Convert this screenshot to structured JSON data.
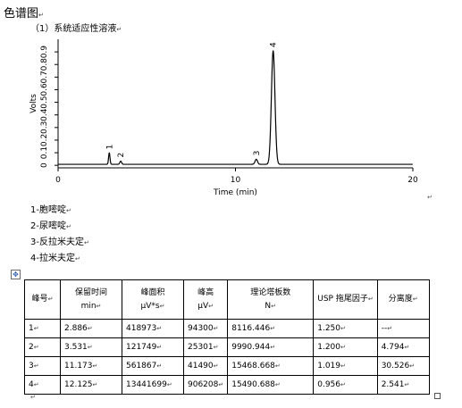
{
  "header": {
    "title": "色谱图",
    "subtitle": "（1）系统适应性溶液"
  },
  "chart_data": {
    "type": "line",
    "xlabel": "Time (min)",
    "ylabel": "Volts",
    "xlim": [
      0,
      20
    ],
    "ylim": [
      -0.02,
      1.0
    ],
    "xticks": [
      0,
      10,
      20
    ],
    "yticks": [
      0.0,
      0.1,
      0.2,
      0.3,
      0.4,
      0.5,
      0.6,
      0.7,
      0.8,
      0.9
    ],
    "baseline": 0.008,
    "peaks": [
      {
        "label": "1",
        "rt": 2.886,
        "height": 0.09,
        "width": 0.04
      },
      {
        "label": "2",
        "rt": 3.531,
        "height": 0.025,
        "width": 0.05
      },
      {
        "label": "3",
        "rt": 11.173,
        "height": 0.04,
        "width": 0.07
      },
      {
        "label": "4",
        "rt": 12.125,
        "height": 0.9,
        "width": 0.1
      }
    ]
  },
  "legend": {
    "items": [
      "1-胞嘧啶",
      "2-尿嘧啶",
      "3-反拉米夫定",
      "4-拉米夫定"
    ]
  },
  "table": {
    "headers": [
      [
        "峰号"
      ],
      [
        "保留时间",
        "min"
      ],
      [
        "峰面积",
        "μV*s"
      ],
      [
        "峰高",
        "μV"
      ],
      [
        "理论塔板数",
        "N"
      ],
      [
        "USP 拖尾因子"
      ],
      [
        "分离度"
      ]
    ],
    "rows": [
      [
        "1",
        "2.886",
        "418973",
        "94300",
        "8116.446",
        "1.250",
        "--"
      ],
      [
        "2",
        "3.531",
        "121749",
        "25301",
        "9990.944",
        "1.200",
        "4.794"
      ],
      [
        "3",
        "11.173",
        "561867",
        "41490",
        "15468.668",
        "1.019",
        "30.526"
      ],
      [
        "4",
        "12.125",
        "13441699",
        "906208",
        "15490.688",
        "0.956",
        "2.541"
      ]
    ]
  }
}
